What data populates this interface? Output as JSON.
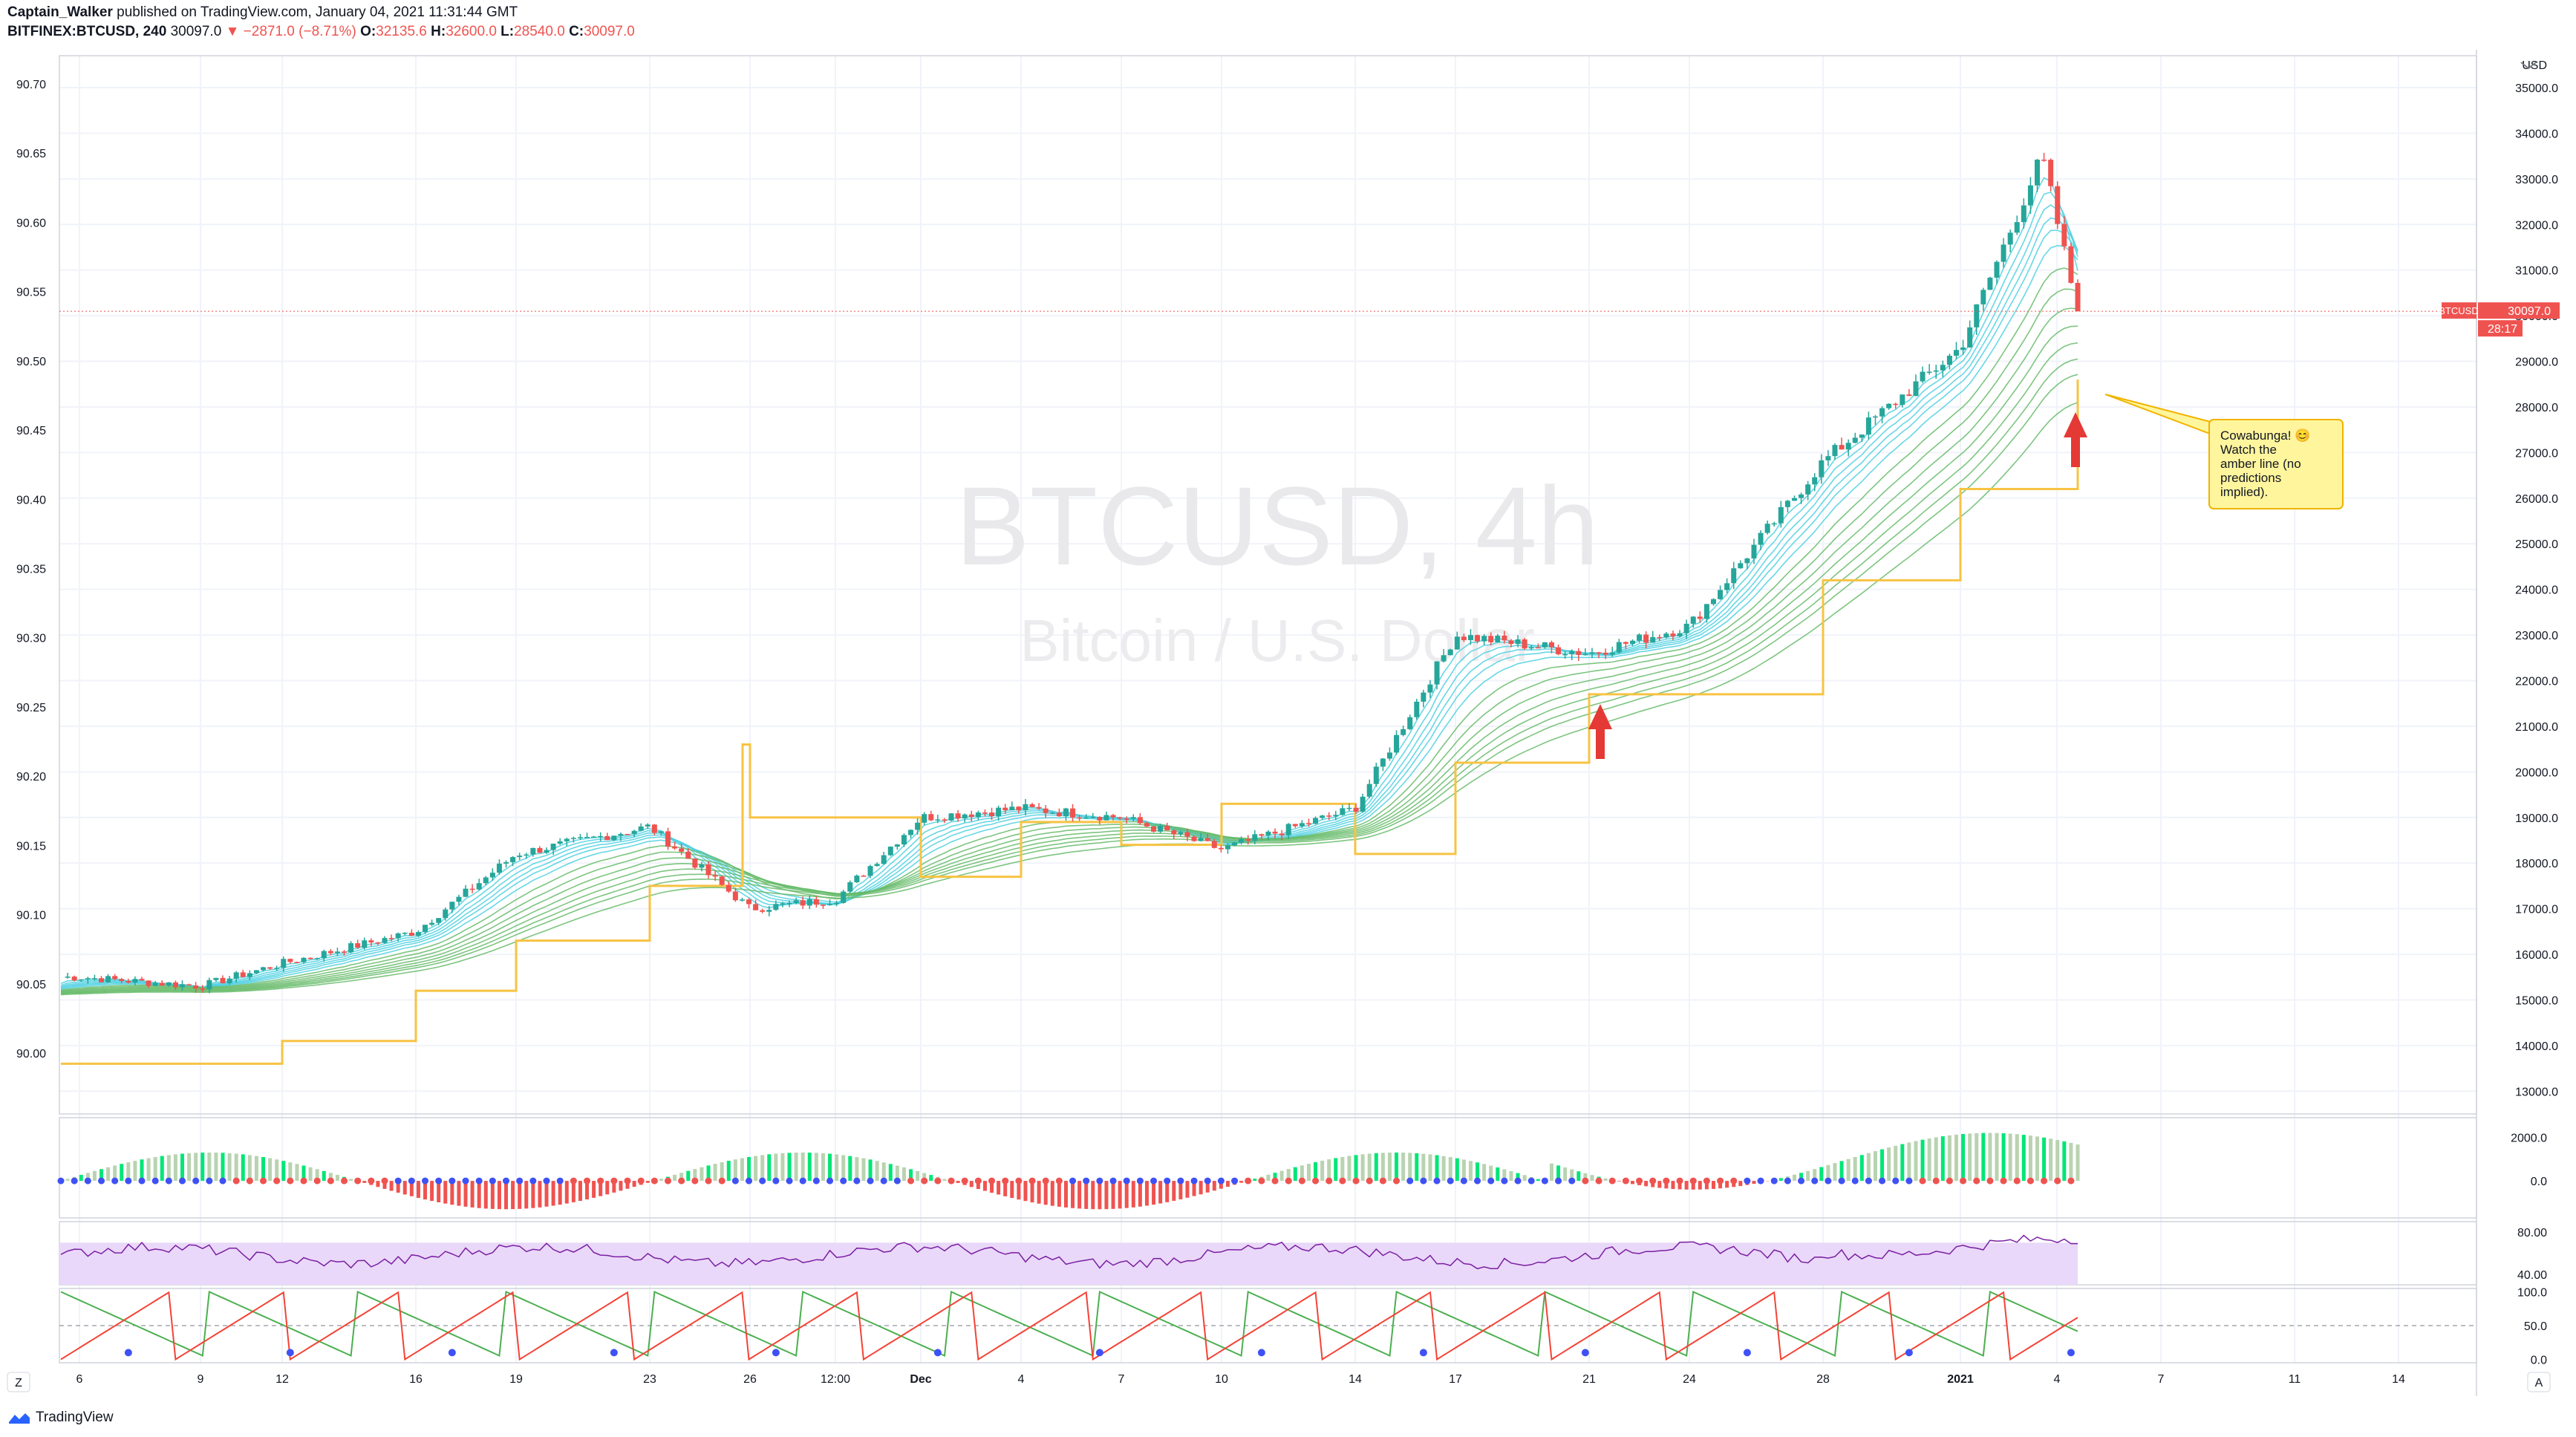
{
  "header": {
    "author": "Captain_Walker",
    "published": "published on TradingView.com, January 04, 2021 11:31:44 GMT",
    "symbol": "BITFINEX:BTCUSD, 240",
    "last": "30097.0",
    "change": "−2871.0 (−8.71%)",
    "o_label": "O:",
    "o_val": "32135.6",
    "h_label": "H:",
    "h_val": "32600.0",
    "l_label": "L:",
    "l_val": "28540.0",
    "c_label": "C:",
    "c_val": "30097.0"
  },
  "watermark": {
    "line1": "BTCUSD, 4h",
    "line2": "Bitcoin / U.S. Dollar"
  },
  "price_axis": {
    "currency": "USD",
    "badge_symbol": "BTCUSD",
    "badge_price": "30097.0",
    "countdown": "28:17"
  },
  "annotation": {
    "text": [
      "Cowabunga! 😊",
      "Watch the",
      "amber line (no",
      "predictions",
      "implied)."
    ]
  },
  "footer": {
    "brand": "TradingView"
  },
  "axis_buttons": {
    "left": "Z",
    "right": "A"
  },
  "colors": {
    "up": "#26a69a",
    "down": "#ef5350",
    "amber": "#f7c343",
    "ribbon_cyan": "#4dd0e1",
    "ribbon_green": "#66bb6a",
    "rsi": "#7b1fa2",
    "rsi_band": "#e9d8f9",
    "hist_green": "#00e676",
    "hist_red": "#ef5350",
    "stoch_green": "#4caf50",
    "stoch_red": "#f44336"
  },
  "chart_data": [
    {
      "type": "candlestick",
      "title": "BTCUSD, 4h",
      "series": [
        {
          "name": "BTCUSD",
          "x": [
            "Nov 6",
            "Nov 9",
            "Nov 12",
            "Nov 16",
            "Nov 19",
            "Nov 23",
            "Nov 26",
            "Nov 27 12:00",
            "Dec 1",
            "Dec 4",
            "Dec 7",
            "Dec 10",
            "Dec 14",
            "Dec 17",
            "Dec 21",
            "Dec 24",
            "Dec 28",
            "Jan 1",
            "Jan 3",
            "Jan 4"
          ],
          "y": [
            15500,
            15300,
            15800,
            16500,
            18200,
            18800,
            17000,
            17200,
            19000,
            19200,
            19000,
            18300,
            19200,
            23000,
            22600,
            23200,
            26800,
            29300,
            33500,
            30097
          ]
        },
        {
          "name": "amber line",
          "x": [
            "Nov 6",
            "Nov 12",
            "Nov 16",
            "Nov 19",
            "Nov 23",
            "Nov 26",
            "Nov 27",
            "Dec 1",
            "Dec 4",
            "Dec 7",
            "Dec 10",
            "Dec 14",
            "Dec 17",
            "Dec 21",
            "Dec 24",
            "Dec 28",
            "Jan 1",
            "Jan 4"
          ],
          "y": [
            13600,
            14100,
            15200,
            16300,
            17500,
            20600,
            19000,
            17700,
            18900,
            18400,
            19300,
            18200,
            20200,
            21700,
            21700,
            24200,
            26200,
            28600
          ]
        }
      ],
      "price_ticks": [
        13000,
        14000,
        15000,
        16000,
        17000,
        18000,
        19000,
        20000,
        21000,
        22000,
        23000,
        24000,
        25000,
        26000,
        27000,
        28000,
        29000,
        30000,
        31000,
        32000,
        33000,
        34000,
        35000
      ],
      "ylim": [
        12500,
        35700
      ],
      "left_axis_ticks": [
        "90.70",
        "90.65",
        "90.60",
        "90.55",
        "90.50",
        "90.45",
        "90.40",
        "90.35",
        "90.30",
        "90.25",
        "90.20",
        "90.15",
        "90.10",
        "90.05",
        "90.00"
      ],
      "x_ticks": [
        "6",
        "9",
        "12",
        "16",
        "19",
        "23",
        "26",
        "12:00",
        "Dec",
        "4",
        "7",
        "10",
        "14",
        "17",
        "21",
        "24",
        "28",
        "2021",
        "4",
        "7",
        "11",
        "14"
      ],
      "grid": true
    },
    {
      "type": "bar",
      "title": "",
      "ticks": [
        "2000.0",
        "0.0"
      ],
      "ylim": [
        -1700,
        2900
      ]
    },
    {
      "type": "line",
      "title": "",
      "ticks": [
        "80.00",
        "40.00"
      ],
      "ylim": [
        30,
        90
      ]
    },
    {
      "type": "line",
      "title": "",
      "ticks": [
        "100.0",
        "50.0",
        "0.0"
      ],
      "ylim": [
        -5,
        105
      ]
    }
  ]
}
